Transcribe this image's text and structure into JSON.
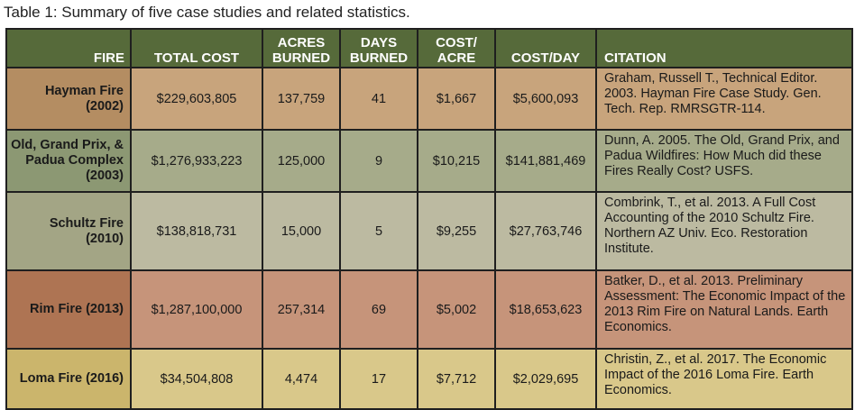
{
  "caption": "Table 1: Summary of five case studies and related statistics.",
  "headers": {
    "fire": "FIRE",
    "total_cost": "TOTAL COST",
    "acres_burned": "ACRES BURNED",
    "days_burned": "DAYS BURNED",
    "cost_per_acre": "COST/ ACRE",
    "cost_per_day": "COST/DAY",
    "citation": "CITATION"
  },
  "rows": [
    {
      "fire": "Hayman Fire (2002)",
      "total_cost": "$229,603,805",
      "acres": "137,759",
      "days": "41",
      "cost_acre": "$1,667",
      "cost_day": "$5,600,093",
      "citation": "Graham, Russell T., Technical Editor. 2003. Hayman Fire Case Study. Gen. Tech. Rep. RMRSGTR-114."
    },
    {
      "fire": "Old, Grand Prix, & Padua Complex (2003)",
      "total_cost": "$1,276,933,223",
      "acres": "125,000",
      "days": "9",
      "cost_acre": "$10,215",
      "cost_day": "$141,881,469",
      "citation": "Dunn, A. 2005. The Old, Grand Prix, and Padua Wildfires: How Much did these Fires Really Cost? USFS."
    },
    {
      "fire": "Schultz Fire (2010)",
      "total_cost": "$138,818,731",
      "acres": "15,000",
      "days": "5",
      "cost_acre": "$9,255",
      "cost_day": "$27,763,746",
      "citation": "Combrink, T., et al. 2013. A Full Cost Accounting of the 2010 Schultz Fire. Northern AZ Univ. Eco. Restoration Institute."
    },
    {
      "fire": "Rim Fire (2013)",
      "total_cost": "$1,287,100,000",
      "acres": "257,314",
      "days": "69",
      "cost_acre": "$5,002",
      "cost_day": "$18,653,623",
      "citation": "Batker, D., et al. 2013. Preliminary Assessment: The Economic Impact of the 2013 Rim Fire on Natural Lands. Earth Economics."
    },
    {
      "fire": "Loma Fire (2016)",
      "total_cost": "$34,504,808",
      "acres": "4,474",
      "days": "17",
      "cost_acre": "$7,712",
      "cost_day": "$2,029,695",
      "citation": "Christin, Z., et al. 2017. The Economic Impact of the 2016 Loma Fire. Earth Economics."
    }
  ]
}
